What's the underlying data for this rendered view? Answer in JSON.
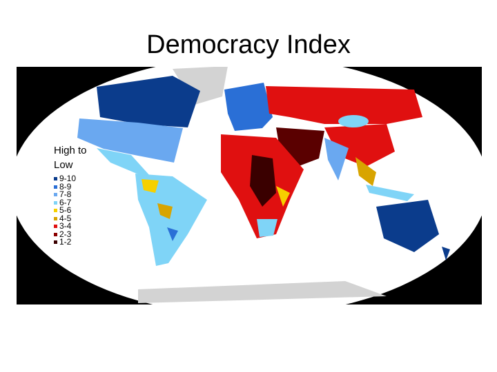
{
  "title": "Democracy Index",
  "legend": {
    "heading": "High to Low",
    "items": [
      {
        "label": "9-10",
        "color": "#0b3c8c"
      },
      {
        "label": "8-9",
        "color": "#2a6fd6"
      },
      {
        "label": "7-8",
        "color": "#6aa8f0"
      },
      {
        "label": "6-7",
        "color": "#7fd4f7"
      },
      {
        "label": "5-6",
        "color": "#f6d000"
      },
      {
        "label": "4-5",
        "color": "#d8a400"
      },
      {
        "label": "3-4",
        "color": "#e01010"
      },
      {
        "label": "2-3",
        "color": "#8b0000"
      },
      {
        "label": "1-2",
        "color": "#3a0000"
      }
    ]
  }
}
